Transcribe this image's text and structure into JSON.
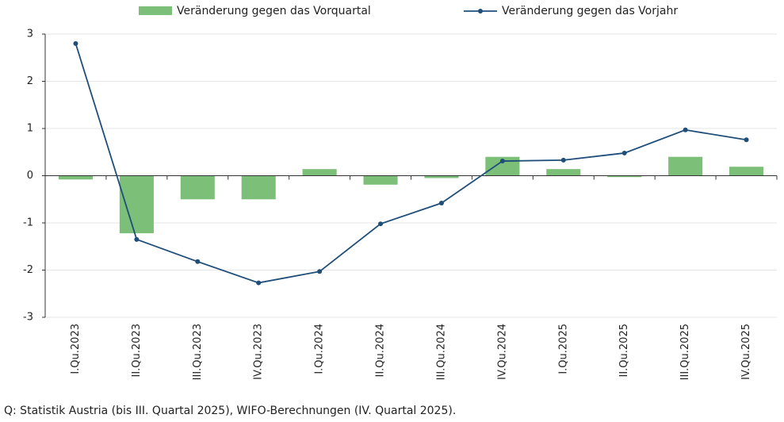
{
  "chart_data": {
    "type": "combo",
    "categories": [
      "I.Qu.2023",
      "II.Qu.2023",
      "III.Qu.2023",
      "IV.Qu.2023",
      "I.Qu.2024",
      "II.Qu.2024",
      "III.Qu.2024",
      "IV.Qu.2024",
      "I.Qu.2025",
      "II.Qu.2025",
      "III.Qu.2025",
      "IV.Qu.2025"
    ],
    "series": [
      {
        "name": "Veränderung gegen das Vorquartal",
        "type": "bar",
        "color": "#7cbf79",
        "values": [
          -0.08,
          -1.22,
          -0.5,
          -0.5,
          0.14,
          -0.19,
          -0.05,
          0.4,
          0.14,
          -0.03,
          0.4,
          0.19
        ]
      },
      {
        "name": "Veränderung gegen das Vorjahr",
        "type": "line",
        "color": "#1f4e79",
        "values": [
          2.8,
          -1.35,
          -1.82,
          -2.27,
          -2.03,
          -1.02,
          -0.58,
          0.31,
          0.33,
          0.48,
          0.97,
          0.76
        ]
      }
    ],
    "ylim": [
      -3,
      3
    ],
    "yticks": [
      -3,
      -2,
      -1,
      0,
      1,
      2,
      3
    ],
    "grid": true,
    "legend": "top",
    "source": "Q: Statistik Austria (bis III. Quartal 2025), WIFO-Berechnungen (IV. Quartal 2025)."
  }
}
